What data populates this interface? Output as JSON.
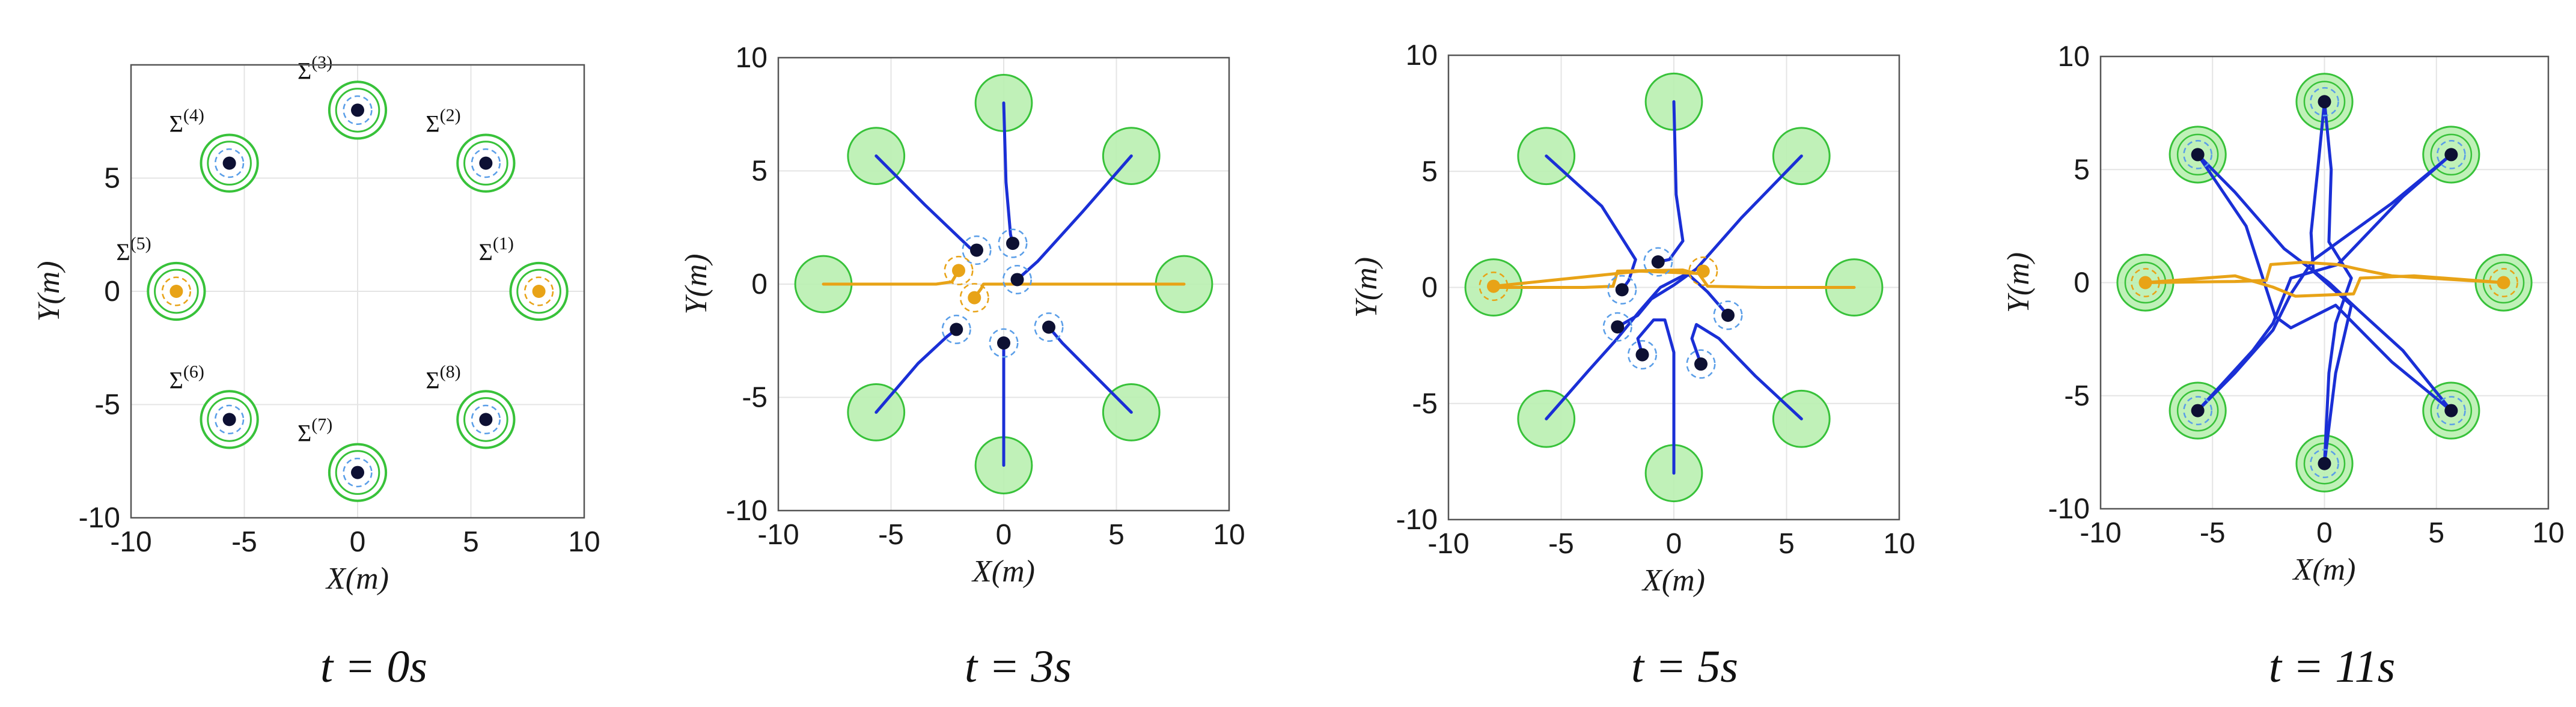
{
  "chart_data": [
    {
      "type": "scatter",
      "caption": "t = 0s",
      "xlabel": "X(m)",
      "ylabel": "Y(m)",
      "xlim": [
        -10,
        10
      ],
      "ylim": [
        -10,
        10
      ],
      "xticks": [
        -10,
        -5,
        0,
        5,
        10
      ],
      "yticks": [
        -10,
        -5,
        0,
        5
      ],
      "grid": true,
      "show_labels": true,
      "goal_style": "rings",
      "agents": [
        {
          "label": "Σ(1)",
          "color": "orange",
          "pos": [
            8,
            0
          ]
        },
        {
          "label": "Σ(2)",
          "color": "navy",
          "pos": [
            5.66,
            5.66
          ]
        },
        {
          "label": "Σ(3)",
          "color": "navy",
          "pos": [
            0,
            8
          ]
        },
        {
          "label": "Σ(4)",
          "color": "navy",
          "pos": [
            -5.66,
            5.66
          ]
        },
        {
          "label": "Σ(5)",
          "color": "orange",
          "pos": [
            -8,
            0
          ]
        },
        {
          "label": "Σ(6)",
          "color": "navy",
          "pos": [
            -5.66,
            -5.66
          ]
        },
        {
          "label": "Σ(7)",
          "color": "navy",
          "pos": [
            0,
            -8
          ]
        },
        {
          "label": "Σ(8)",
          "color": "navy",
          "pos": [
            5.66,
            -5.66
          ]
        }
      ],
      "trajectories": []
    },
    {
      "type": "line",
      "caption": "t = 3s",
      "xlabel": "X(m)",
      "ylabel": "Y(m)",
      "xlim": [
        -10,
        10
      ],
      "ylim": [
        -10,
        10
      ],
      "xticks": [
        -10,
        -5,
        0,
        5,
        10
      ],
      "yticks": [
        -10,
        -5,
        0,
        5,
        10
      ],
      "grid": true,
      "show_labels": false,
      "goal_style": "filled",
      "goals": [
        [
          8,
          0
        ],
        [
          5.66,
          5.66
        ],
        [
          0,
          8
        ],
        [
          -5.66,
          5.66
        ],
        [
          -8,
          0
        ],
        [
          -5.66,
          -5.66
        ],
        [
          0,
          -8
        ],
        [
          5.66,
          -5.66
        ]
      ],
      "trajectories": [
        {
          "color": "blue",
          "points": [
            [
              -5.66,
              5.66
            ],
            [
              -3.5,
              3.5
            ],
            [
              -1.5,
              1.6
            ],
            [
              -1.2,
              1.5
            ]
          ]
        },
        {
          "color": "blue",
          "points": [
            [
              0,
              8
            ],
            [
              0.1,
              4.5
            ],
            [
              0.3,
              2.2
            ],
            [
              0.4,
              1.8
            ]
          ]
        },
        {
          "color": "blue",
          "points": [
            [
              5.66,
              5.66
            ],
            [
              3.5,
              3.2
            ],
            [
              1.5,
              1.0
            ],
            [
              0.6,
              0.2
            ]
          ]
        },
        {
          "color": "blue",
          "points": [
            [
              -5.66,
              -5.66
            ],
            [
              -3.8,
              -3.5
            ],
            [
              -2.5,
              -2.3
            ],
            [
              -2.1,
              -2.0
            ]
          ]
        },
        {
          "color": "blue",
          "points": [
            [
              0,
              -8
            ],
            [
              0,
              -5
            ],
            [
              0,
              -3
            ],
            [
              0,
              -2.6
            ]
          ]
        },
        {
          "color": "blue",
          "points": [
            [
              5.66,
              -5.66
            ],
            [
              4,
              -4
            ],
            [
              2.6,
              -2.6
            ],
            [
              2.0,
              -1.9
            ]
          ]
        },
        {
          "color": "orange",
          "points": [
            [
              -8,
              0
            ],
            [
              -5,
              0
            ],
            [
              -3,
              0
            ],
            [
              -2.3,
              0.1
            ],
            [
              -2.0,
              0.6
            ]
          ]
        },
        {
          "color": "orange",
          "points": [
            [
              8,
              0
            ],
            [
              4,
              0
            ],
            [
              1,
              0
            ],
            [
              -0.9,
              0
            ],
            [
              -1.0,
              -0.2
            ],
            [
              -1.3,
              -0.6
            ]
          ]
        }
      ],
      "agents": [
        {
          "color": "navy",
          "pos": [
            -1.2,
            1.5
          ]
        },
        {
          "color": "navy",
          "pos": [
            0.4,
            1.8
          ]
        },
        {
          "color": "navy",
          "pos": [
            0.6,
            0.2
          ]
        },
        {
          "color": "navy",
          "pos": [
            -2.1,
            -2.0
          ]
        },
        {
          "color": "navy",
          "pos": [
            0,
            -2.6
          ]
        },
        {
          "color": "navy",
          "pos": [
            2.0,
            -1.9
          ]
        },
        {
          "color": "orange",
          "pos": [
            -2.0,
            0.6
          ]
        },
        {
          "color": "orange",
          "pos": [
            -1.3,
            -0.6
          ]
        }
      ]
    },
    {
      "type": "line",
      "caption": "t = 5s",
      "xlabel": "X(m)",
      "ylabel": "Y(m)",
      "xlim": [
        -10,
        10
      ],
      "ylim": [
        -10,
        10
      ],
      "xticks": [
        -10,
        -5,
        0,
        5,
        10
      ],
      "yticks": [
        -10,
        -5,
        0,
        5,
        10
      ],
      "grid": true,
      "show_labels": false,
      "goal_style": "filled",
      "goals": [
        [
          8,
          0
        ],
        [
          5.66,
          5.66
        ],
        [
          0,
          8
        ],
        [
          -5.66,
          5.66
        ],
        [
          -8,
          0
        ],
        [
          -5.66,
          -5.66
        ],
        [
          0,
          -8
        ],
        [
          5.66,
          -5.66
        ]
      ],
      "trajectories": [
        {
          "color": "blue",
          "points": [
            [
              -5.66,
              5.66
            ],
            [
              -3.2,
              3.5
            ],
            [
              -1.7,
              1.2
            ],
            [
              -2.0,
              0.3
            ],
            [
              -2.3,
              -0.1
            ]
          ]
        },
        {
          "color": "blue",
          "points": [
            [
              0,
              8
            ],
            [
              0.1,
              4
            ],
            [
              0.4,
              2
            ],
            [
              -0.2,
              1.2
            ],
            [
              -0.7,
              1.1
            ]
          ]
        },
        {
          "color": "blue",
          "points": [
            [
              5.66,
              5.66
            ],
            [
              3,
              3
            ],
            [
              1.0,
              0.8
            ],
            [
              0,
              0.1
            ],
            [
              -1.0,
              -0.5
            ],
            [
              -1.6,
              -1.2
            ],
            [
              -2.5,
              -1.7
            ]
          ]
        },
        {
          "color": "blue",
          "points": [
            [
              -5.66,
              -5.66
            ],
            [
              -3.8,
              -3.6
            ],
            [
              -2.6,
              -2.3
            ],
            [
              -1.5,
              -1.0
            ],
            [
              -0.6,
              0.0
            ],
            [
              0.6,
              0.6
            ],
            [
              1.5,
              -0.2
            ],
            [
              2.4,
              -1.2
            ]
          ]
        },
        {
          "color": "blue",
          "points": [
            [
              0,
              -8
            ],
            [
              0,
              -4.5
            ],
            [
              0,
              -2.8
            ],
            [
              -0.4,
              -1.4
            ],
            [
              -0.9,
              -1.4
            ],
            [
              -1.6,
              -2.2
            ],
            [
              -1.4,
              -2.9
            ]
          ]
        },
        {
          "color": "blue",
          "points": [
            [
              5.66,
              -5.66
            ],
            [
              3.6,
              -3.8
            ],
            [
              2.0,
              -2.2
            ],
            [
              1.0,
              -1.6
            ],
            [
              0.8,
              -2.2
            ],
            [
              1.2,
              -3.3
            ]
          ]
        },
        {
          "color": "orange",
          "points": [
            [
              -8,
              0
            ],
            [
              -4,
              0
            ],
            [
              -2.7,
              0.05
            ],
            [
              -2.5,
              0.7
            ],
            [
              0.4,
              0.75
            ],
            [
              1.0,
              0.6
            ],
            [
              1.3,
              0.7
            ]
          ]
        },
        {
          "color": "orange",
          "points": [
            [
              8,
              0
            ],
            [
              4,
              0
            ],
            [
              1.5,
              0.05
            ],
            [
              1.1,
              0.6
            ],
            [
              -1.5,
              0.7
            ],
            [
              -8,
              0.05
            ]
          ]
        }
      ],
      "agents": [
        {
          "color": "navy",
          "pos": [
            -2.3,
            -0.1
          ]
        },
        {
          "color": "navy",
          "pos": [
            -0.7,
            1.1
          ]
        },
        {
          "color": "navy",
          "pos": [
            -2.5,
            -1.7
          ]
        },
        {
          "color": "navy",
          "pos": [
            2.4,
            -1.2
          ]
        },
        {
          "color": "navy",
          "pos": [
            -1.4,
            -2.9
          ]
        },
        {
          "color": "navy",
          "pos": [
            1.2,
            -3.3
          ]
        },
        {
          "color": "orange",
          "pos": [
            1.3,
            0.7
          ]
        },
        {
          "color": "orange",
          "pos": [
            -8,
            0.05
          ]
        }
      ]
    },
    {
      "type": "line",
      "caption": "t = 11s",
      "xlabel": "X(m)",
      "ylabel": "Y(m)",
      "xlim": [
        -10,
        10
      ],
      "ylim": [
        -10,
        10
      ],
      "xticks": [
        -10,
        -5,
        0,
        5,
        10
      ],
      "yticks": [
        -10,
        -5,
        0,
        5,
        10
      ],
      "grid": true,
      "show_labels": false,
      "goal_style": "filled-rings",
      "goals": [
        [
          8,
          0
        ],
        [
          5.66,
          5.66
        ],
        [
          0,
          8
        ],
        [
          -5.66,
          5.66
        ],
        [
          -8,
          0
        ],
        [
          -5.66,
          -5.66
        ],
        [
          0,
          -8
        ],
        [
          5.66,
          -5.66
        ]
      ],
      "trajectories": [
        {
          "color": "blue",
          "points": [
            [
              -5.66,
              5.66
            ],
            [
              -3.5,
              2.5
            ],
            [
              -2.2,
              -1.5
            ],
            [
              -1.5,
              -2.0
            ],
            [
              0.5,
              -1.0
            ],
            [
              3.0,
              -3.5
            ],
            [
              5.66,
              -5.66
            ]
          ]
        },
        {
          "color": "blue",
          "points": [
            [
              0,
              8
            ],
            [
              -0.3,
              5
            ],
            [
              -0.6,
              2.2
            ],
            [
              -0.5,
              0.5
            ],
            [
              1.2,
              -1.0
            ],
            [
              0.5,
              -4
            ],
            [
              0,
              -8
            ]
          ]
        },
        {
          "color": "blue",
          "points": [
            [
              5.66,
              5.66
            ],
            [
              3.0,
              3.5
            ],
            [
              -0.5,
              1.0
            ],
            [
              -1.5,
              -0.5
            ],
            [
              -2.3,
              -2.1
            ],
            [
              -4,
              -4
            ],
            [
              -5.66,
              -5.66
            ]
          ]
        },
        {
          "color": "blue",
          "points": [
            [
              -5.66,
              -5.66
            ],
            [
              -3.2,
              -3.0
            ],
            [
              -2.3,
              -1.8
            ],
            [
              -1.5,
              0.2
            ],
            [
              0.6,
              0.8
            ],
            [
              3.5,
              3.8
            ],
            [
              5.66,
              5.66
            ]
          ]
        },
        {
          "color": "blue",
          "points": [
            [
              0,
              -8
            ],
            [
              0.2,
              -4
            ],
            [
              0.5,
              -1.8
            ],
            [
              1.2,
              0.2
            ],
            [
              0.2,
              1.8
            ],
            [
              0.3,
              5
            ],
            [
              0,
              8
            ]
          ]
        },
        {
          "color": "blue",
          "points": [
            [
              5.66,
              -5.66
            ],
            [
              3.5,
              -3.0
            ],
            [
              1.5,
              -1.2
            ],
            [
              0.2,
              0.0
            ],
            [
              -1.8,
              1.5
            ],
            [
              -4,
              4
            ],
            [
              -5.66,
              5.66
            ]
          ]
        },
        {
          "color": "orange",
          "points": [
            [
              -8,
              0
            ],
            [
              -4,
              0.05
            ],
            [
              -2.6,
              0.1
            ],
            [
              -2.4,
              0.8
            ],
            [
              -1.0,
              0.9
            ],
            [
              0.6,
              0.8
            ],
            [
              1.5,
              0.6
            ],
            [
              3,
              0.3
            ],
            [
              8,
              0
            ]
          ]
        },
        {
          "color": "orange",
          "points": [
            [
              8,
              0
            ],
            [
              4,
              0.3
            ],
            [
              1.6,
              0.2
            ],
            [
              1.3,
              -0.5
            ],
            [
              -1.3,
              -0.6
            ],
            [
              -2.3,
              -0.2
            ],
            [
              -4,
              0.3
            ],
            [
              -8,
              0
            ]
          ]
        }
      ],
      "agents": [
        {
          "color": "navy",
          "pos": [
            5.66,
            -5.66
          ]
        },
        {
          "color": "navy",
          "pos": [
            0,
            -8
          ]
        },
        {
          "color": "navy",
          "pos": [
            -5.66,
            -5.66
          ]
        },
        {
          "color": "navy",
          "pos": [
            5.66,
            5.66
          ]
        },
        {
          "color": "navy",
          "pos": [
            0,
            8
          ]
        },
        {
          "color": "navy",
          "pos": [
            -5.66,
            5.66
          ]
        },
        {
          "color": "orange",
          "pos": [
            8,
            0
          ]
        },
        {
          "color": "orange",
          "pos": [
            -8,
            0
          ]
        }
      ]
    }
  ],
  "colors": {
    "orange": "#e8a317",
    "navy": "#0d1033",
    "blue": "#1a2fd6",
    "goal_fill": "#b9f0b0",
    "goal_stroke": "#38c23a",
    "ring_dash": "#5a9ee8",
    "grid": "#e4e4e4",
    "axis": "#555555"
  }
}
